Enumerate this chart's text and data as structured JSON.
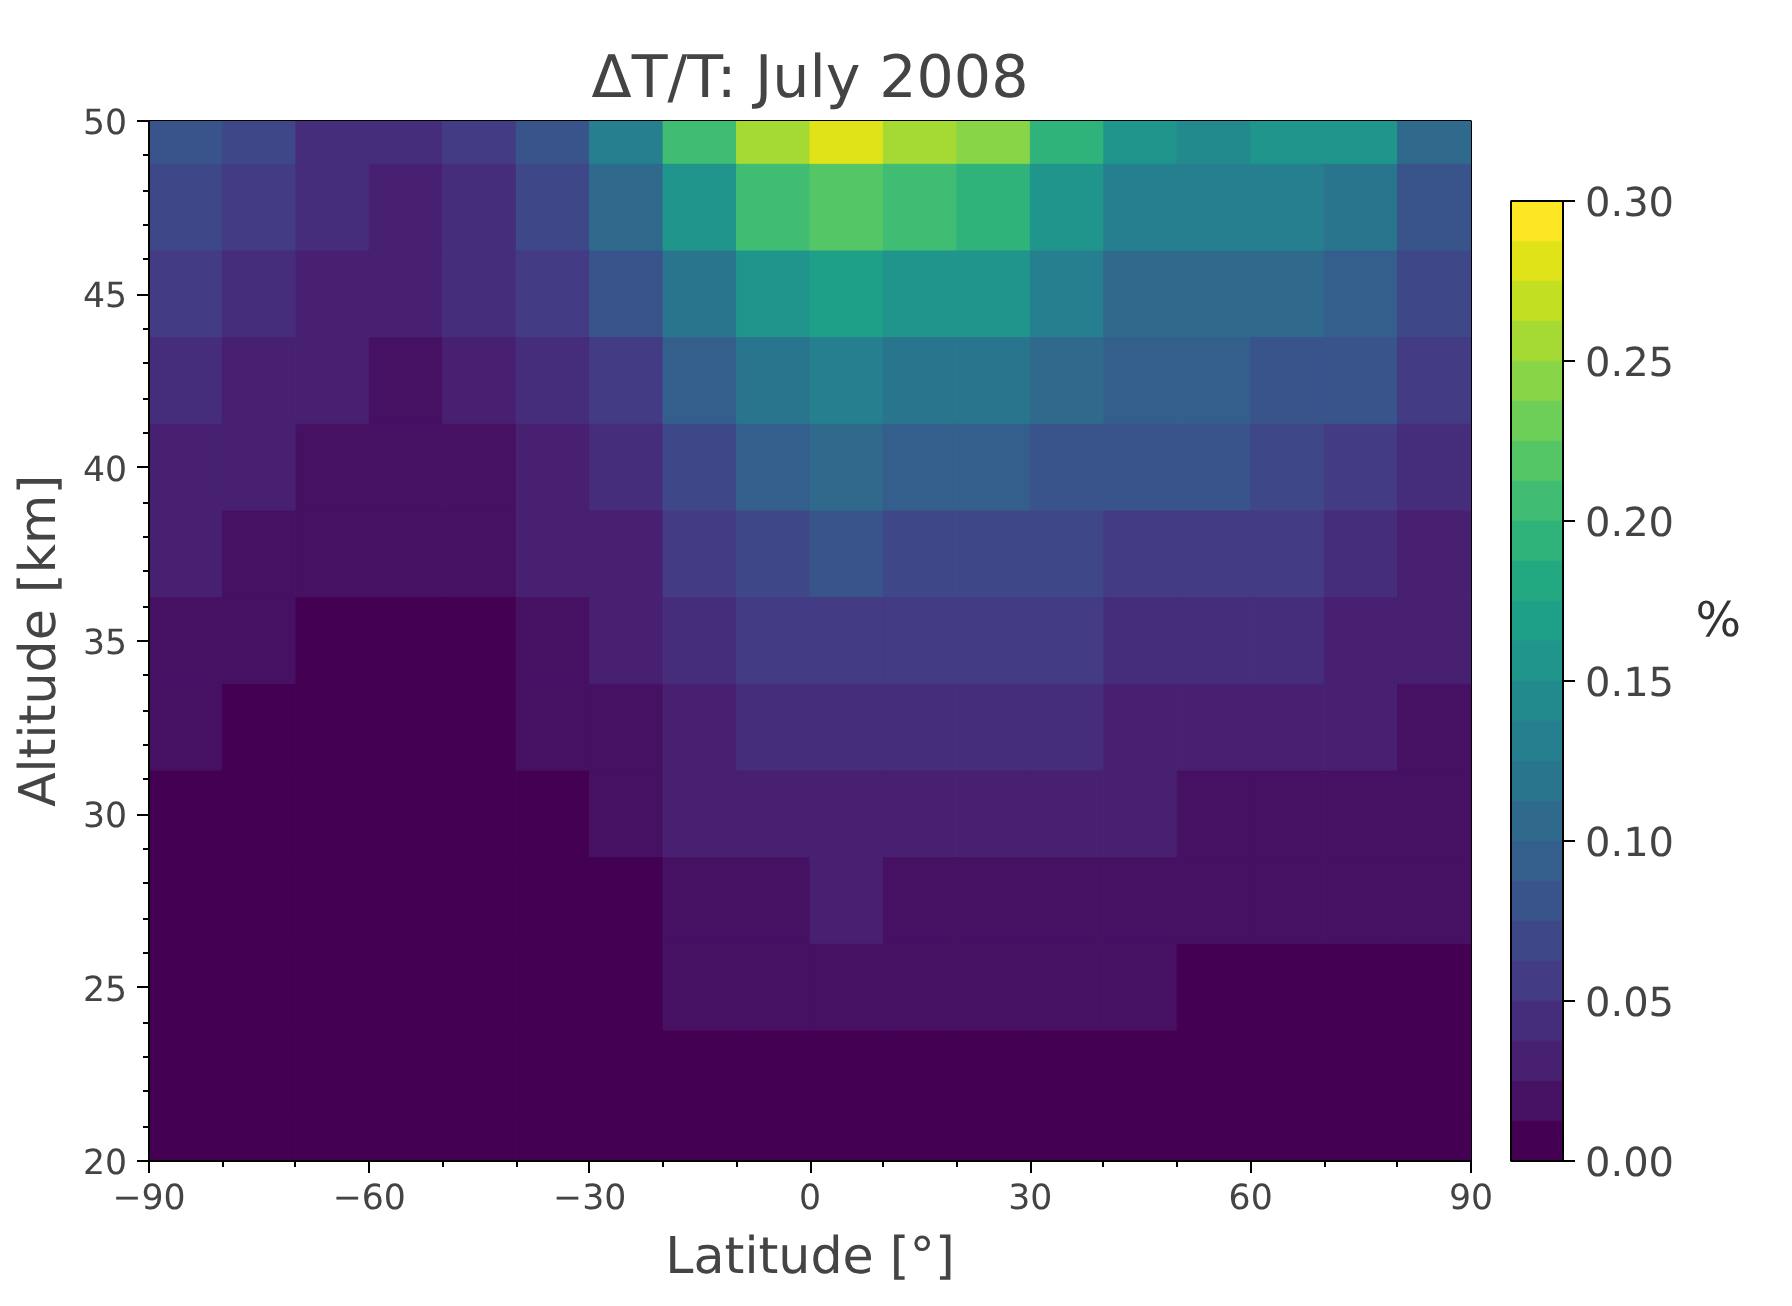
{
  "chart_data": {
    "type": "heatmap",
    "title": "ΔT/T: July 2008",
    "xlabel": "Latitude [°]",
    "ylabel": "Altitude [km]",
    "clabel": "%",
    "x": [
      -85,
      -75,
      -65,
      -55,
      -45,
      -35,
      -25,
      -15,
      -5,
      5,
      15,
      25,
      35,
      45,
      55,
      65,
      75,
      85
    ],
    "cells": [
      [
        0.08,
        0.065,
        0.045,
        0.04,
        0.055,
        0.08,
        0.13,
        0.2,
        0.26,
        0.28,
        0.25,
        0.24,
        0.19,
        0.15,
        0.14,
        0.15,
        0.15,
        0.1
      ],
      [
        0.07,
        0.055,
        0.04,
        0.035,
        0.045,
        0.065,
        0.1,
        0.16,
        0.21,
        0.22,
        0.2,
        0.19,
        0.16,
        0.13,
        0.125,
        0.13,
        0.12,
        0.085
      ],
      [
        0.055,
        0.045,
        0.033,
        0.03,
        0.038,
        0.052,
        0.08,
        0.12,
        0.16,
        0.17,
        0.16,
        0.15,
        0.13,
        0.11,
        0.105,
        0.105,
        0.095,
        0.07
      ],
      [
        0.045,
        0.036,
        0.025,
        0.024,
        0.03,
        0.042,
        0.06,
        0.09,
        0.12,
        0.13,
        0.12,
        0.115,
        0.105,
        0.095,
        0.09,
        0.085,
        0.075,
        0.055
      ],
      [
        0.035,
        0.028,
        0.02,
        0.018,
        0.022,
        0.032,
        0.045,
        0.07,
        0.09,
        0.1,
        0.095,
        0.09,
        0.085,
        0.08,
        0.075,
        0.07,
        0.06,
        0.045
      ],
      [
        0.026,
        0.021,
        0.015,
        0.013,
        0.017,
        0.026,
        0.035,
        0.055,
        0.07,
        0.075,
        0.07,
        0.068,
        0.065,
        0.06,
        0.058,
        0.055,
        0.045,
        0.036
      ],
      [
        0.019,
        0.015,
        0.011,
        0.01,
        0.011,
        0.019,
        0.025,
        0.042,
        0.05,
        0.055,
        0.05,
        0.05,
        0.05,
        0.048,
        0.045,
        0.042,
        0.034,
        0.028
      ],
      [
        0.014,
        0.012,
        0.008,
        0.007,
        0.008,
        0.013,
        0.018,
        0.033,
        0.04,
        0.043,
        0.04,
        0.04,
        0.038,
        0.035,
        0.034,
        0.032,
        0.026,
        0.021
      ],
      [
        0.011,
        0.009,
        0.006,
        0.005,
        0.006,
        0.01,
        0.014,
        0.025,
        0.03,
        0.034,
        0.03,
        0.03,
        0.028,
        0.025,
        0.024,
        0.022,
        0.019,
        0.016
      ],
      [
        0.008,
        0.007,
        0.005,
        0.004,
        0.005,
        0.008,
        0.011,
        0.018,
        0.022,
        0.025,
        0.022,
        0.022,
        0.02,
        0.018,
        0.016,
        0.015,
        0.014,
        0.0125
      ],
      [
        0.006,
        0.005,
        0.004,
        0.003,
        0.004,
        0.006,
        0.008,
        0.013,
        0.015,
        0.018,
        0.015,
        0.015,
        0.013,
        0.013,
        0.011,
        0.011,
        0.01,
        0.009
      ],
      [
        0.004,
        0.004,
        0.003,
        0.003,
        0.003,
        0.005,
        0.006,
        0.01,
        0.011,
        0.012,
        0.01,
        0.01,
        0.009,
        0.008,
        0.007,
        0.007,
        0.007,
        0.006
      ],
      [
        0.003,
        0.003,
        0.002,
        0.002,
        0.002,
        0.003,
        0.004,
        0.005,
        0.005,
        0.005,
        0.005,
        0.005,
        0.005,
        0.004,
        0.004,
        0.004,
        0.004,
        0.003
      ]
    ],
    "xlim": [
      -90,
      90
    ],
    "ylim": [
      20,
      50
    ],
    "xticks": [
      {
        "value": -90,
        "label": "−90"
      },
      {
        "value": -60,
        "label": "−60"
      },
      {
        "value": -30,
        "label": "−30"
      },
      0,
      30,
      60,
      90
    ],
    "yticks": [
      20,
      25,
      30,
      35,
      40,
      45,
      50
    ],
    "clim": [
      0,
      0.3
    ],
    "cticks": [
      {
        "value": 0,
        "label": "0.00"
      },
      {
        "value": 0.05,
        "label": "0.05"
      },
      {
        "value": 0.1,
        "label": "0.10"
      },
      {
        "value": 0.15,
        "label": "0.15"
      },
      {
        "value": 0.2,
        "label": "0.20"
      },
      {
        "value": 0.25,
        "label": "0.25"
      },
      {
        "value": 0.3,
        "label": "0.30"
      }
    ]
  }
}
